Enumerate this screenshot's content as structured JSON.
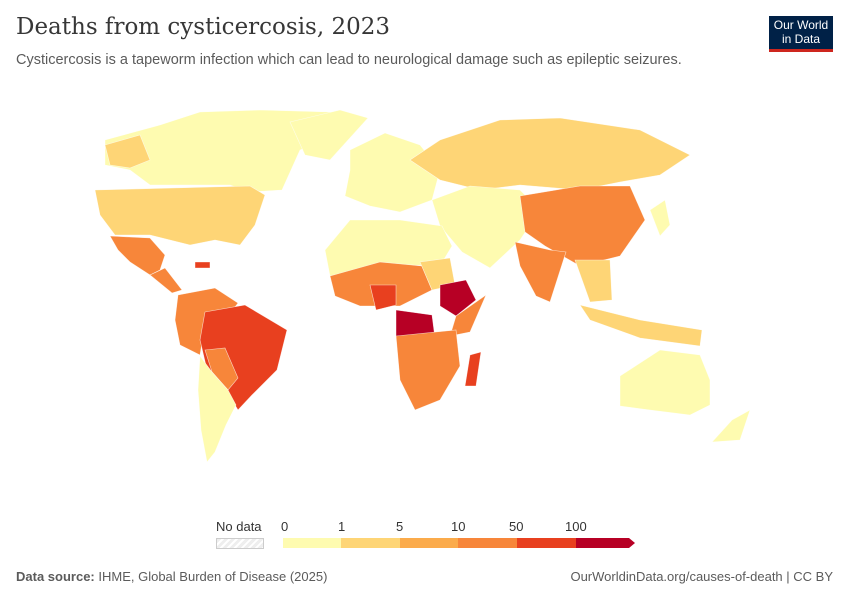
{
  "header": {
    "title": "Deaths from cysticercosis, 2023",
    "subtitle": "Cysticercosis is a tapeworm infection which can lead to neurological damage such as epileptic seizures.",
    "logo": "Our World in Data"
  },
  "legend": {
    "no_data_label": "No data",
    "ticks": [
      "0",
      "1",
      "5",
      "10",
      "50",
      "100"
    ],
    "colors": [
      "#fefbb0",
      "#fed576",
      "#fbab4b",
      "#f7863a",
      "#e8401f",
      "#b70025"
    ]
  },
  "footer": {
    "source_label": "Data source:",
    "source": "IHME, Global Burden of Disease (2025)",
    "link": "OurWorldinData.org/causes-of-death | CC BY"
  }
}
